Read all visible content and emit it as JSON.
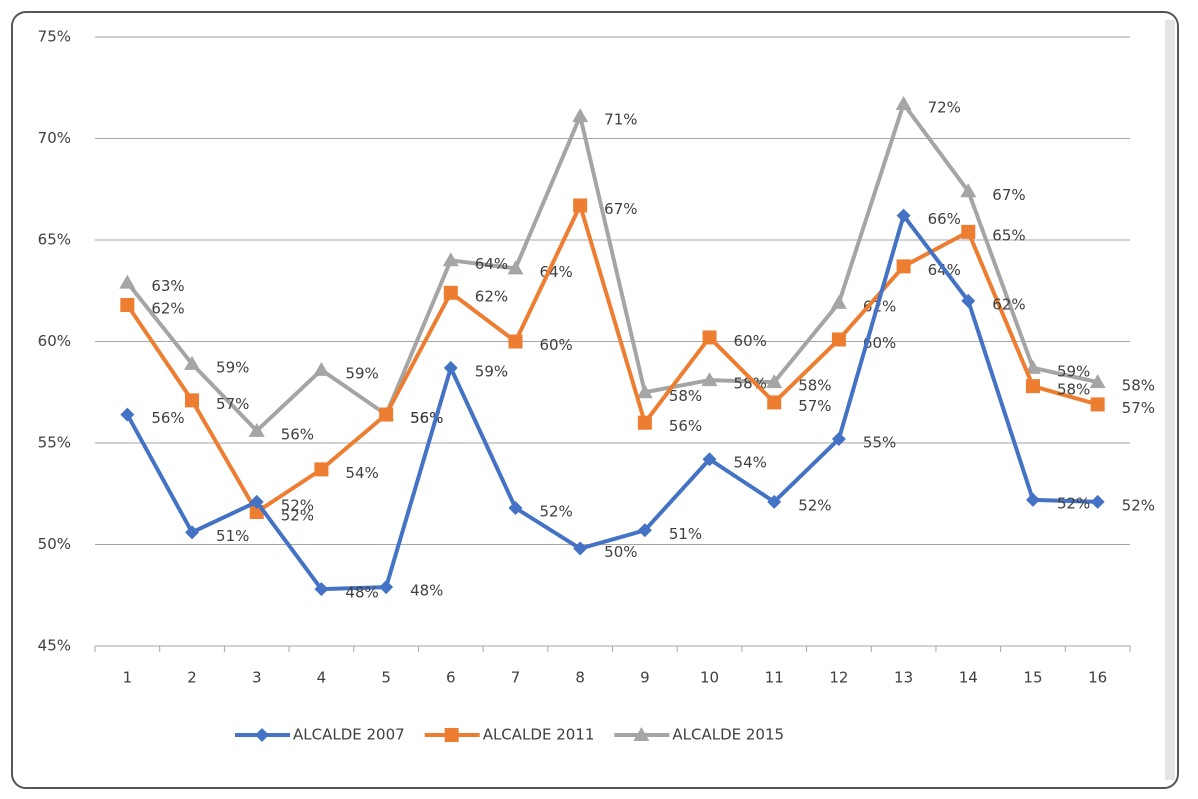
{
  "chart_data": {
    "type": "line",
    "categories": [
      "1",
      "2",
      "3",
      "4",
      "5",
      "6",
      "7",
      "8",
      "9",
      "10",
      "11",
      "12",
      "13",
      "14",
      "15",
      "16"
    ],
    "series": [
      {
        "name": "ALCALDE 2007",
        "color": "#4472c4",
        "marker": "diamond",
        "values": [
          56.4,
          50.6,
          52.1,
          47.8,
          47.9,
          58.7,
          51.8,
          49.8,
          50.7,
          54.2,
          52.1,
          55.2,
          66.2,
          62.0,
          52.2,
          52.1
        ],
        "value_labels": [
          "56%",
          "51%",
          "52%",
          "48%",
          "48%",
          "59%",
          "52%",
          "50%",
          "51%",
          "54%",
          "52%",
          "55%",
          "66%",
          "62%",
          "52%",
          "52%"
        ]
      },
      {
        "name": "ALCALDE 2011",
        "color": "#ed7d31",
        "marker": "square",
        "values": [
          61.8,
          57.1,
          51.6,
          53.7,
          56.4,
          62.4,
          60.0,
          66.7,
          56.0,
          60.2,
          57.0,
          60.1,
          63.7,
          65.4,
          57.8,
          56.9
        ],
        "value_labels": [
          "62%",
          "57%",
          "52%",
          "54%",
          "56%",
          "62%",
          "60%",
          "67%",
          "56%",
          "60%",
          "57%",
          "60%",
          "64%",
          "65%",
          "58%",
          "57%"
        ]
      },
      {
        "name": "ALCALDE 2015",
        "color": "#a5a5a5",
        "marker": "triangle",
        "values": [
          62.9,
          58.9,
          55.6,
          58.6,
          56.4,
          64.0,
          63.6,
          71.1,
          57.5,
          58.1,
          58.0,
          61.9,
          71.7,
          67.4,
          58.7,
          58.0
        ],
        "value_labels": [
          "63%",
          "59%",
          "56%",
          "59%",
          "56%",
          "64%",
          "64%",
          "71%",
          "58%",
          "58%",
          "58%",
          "62%",
          "72%",
          "67%",
          "59%",
          "58%"
        ]
      }
    ],
    "ylim": [
      45,
      75
    ],
    "yticks": [
      {
        "value": 45,
        "label": "45%"
      },
      {
        "value": 50,
        "label": "50%"
      },
      {
        "value": 55,
        "label": "55%"
      },
      {
        "value": 60,
        "label": "60%"
      },
      {
        "value": 65,
        "label": "65%"
      },
      {
        "value": 70,
        "label": "70%"
      },
      {
        "value": 75,
        "label": "75%"
      }
    ],
    "grid": true,
    "legend": "bottom"
  }
}
